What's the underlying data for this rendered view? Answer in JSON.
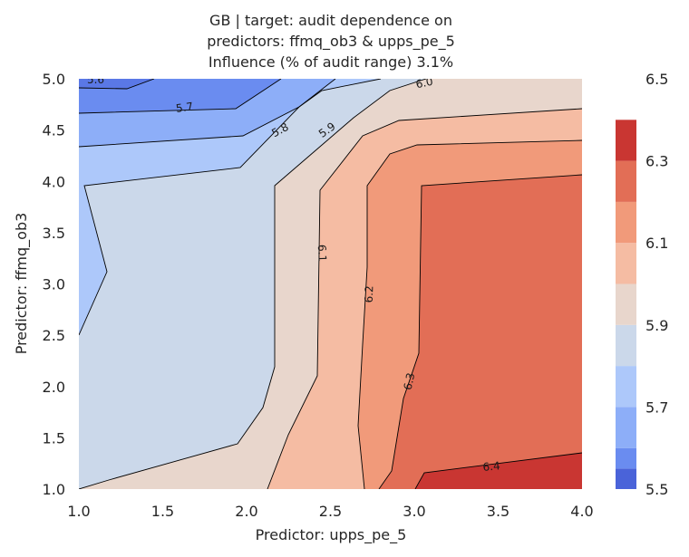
{
  "chart_data": {
    "type": "contour",
    "title": [
      "GB | target: audit dependence on",
      "predictors: ffmq_ob3 & upps_pe_5",
      "Influence (% of audit range) 3.1%"
    ],
    "xlabel": "Predictor: upps_pe_5",
    "ylabel": "Predictor: ffmq_ob3",
    "xlim": [
      1.0,
      4.0
    ],
    "ylim": [
      1.0,
      5.0
    ],
    "x_ticks": [
      "1.0",
      "1.5",
      "2.0",
      "2.5",
      "3.0",
      "3.5",
      "4.0"
    ],
    "y_ticks": [
      "1.0",
      "1.5",
      "2.0",
      "2.5",
      "3.0",
      "3.5",
      "4.0",
      "4.5",
      "5.0"
    ],
    "colorbar": {
      "range": [
        5.5,
        6.5
      ],
      "ticks": [
        "5.5",
        "5.7",
        "5.9",
        "6.1",
        "6.3",
        "6.5"
      ],
      "levels": [
        5.5,
        5.55,
        5.6,
        5.7,
        5.8,
        5.9,
        6.0,
        6.1,
        6.2,
        6.3,
        6.4,
        6.5
      ],
      "colors": [
        "#4a63d9",
        "#6a8cf0",
        "#8daef8",
        "#adc8fa",
        "#cbd8ea",
        "#e8d6cc",
        "#f5bca3",
        "#f19a7a",
        "#e26e56",
        "#c93632"
      ]
    },
    "contour_labels": [
      {
        "text": "5.6",
        "x": 1.1,
        "y": 4.99,
        "angle": 0
      },
      {
        "text": "5.7",
        "x": 1.63,
        "y": 4.72,
        "angle": -8
      },
      {
        "text": "5.8",
        "x": 2.2,
        "y": 4.5,
        "angle": -28
      },
      {
        "text": "5.9",
        "x": 2.48,
        "y": 4.5,
        "angle": -35
      },
      {
        "text": "6.0",
        "x": 3.06,
        "y": 4.96,
        "angle": -12
      },
      {
        "text": "6.1",
        "x": 2.45,
        "y": 3.3,
        "angle": 88
      },
      {
        "text": "6.2",
        "x": 2.73,
        "y": 2.9,
        "angle": -88
      },
      {
        "text": "6.3",
        "x": 2.97,
        "y": 2.05,
        "angle": -78
      },
      {
        "text": "6.4",
        "x": 3.46,
        "y": 1.22,
        "angle": -5
      }
    ]
  }
}
